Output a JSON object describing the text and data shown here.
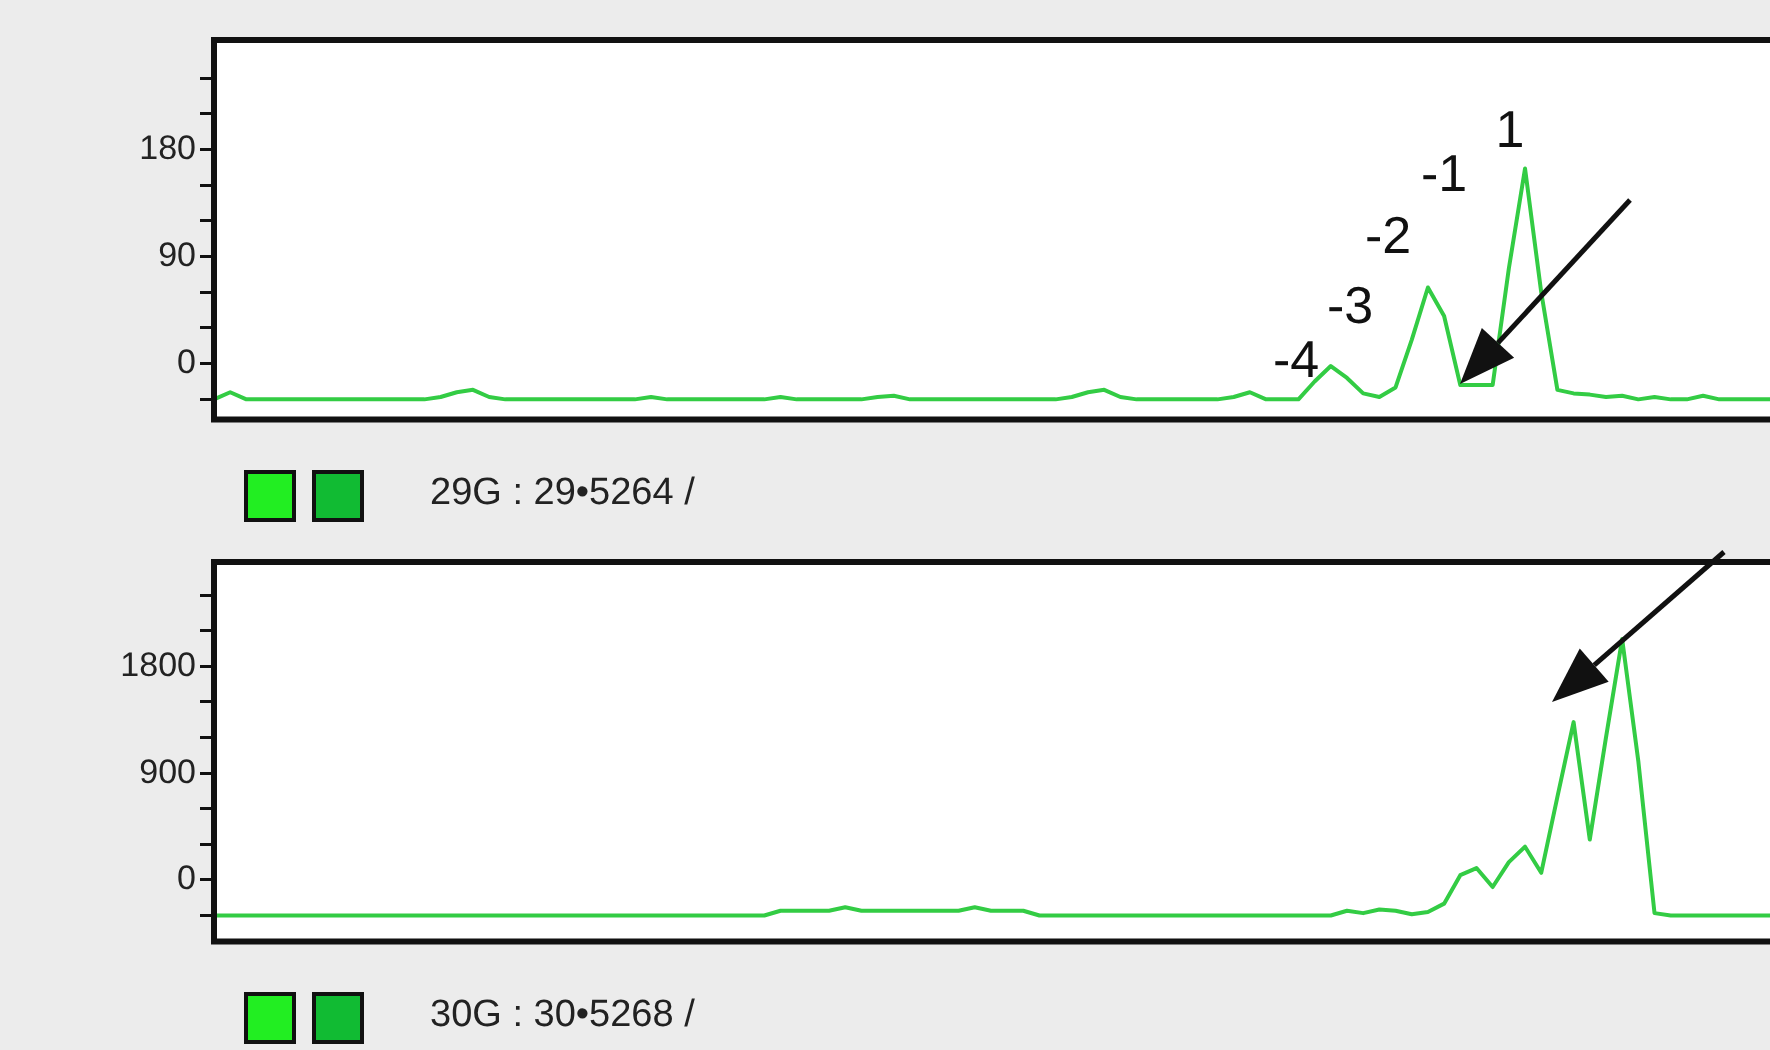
{
  "chart_data": [
    {
      "type": "line",
      "categories": [
        null,
        null,
        null,
        null,
        null,
        null,
        null,
        null,
        null,
        null,
        null,
        null,
        null,
        null,
        null,
        null,
        null,
        null,
        null,
        null,
        null,
        null,
        null,
        null,
        null,
        null,
        null,
        null,
        null,
        null,
        null,
        null,
        null,
        null,
        null,
        null,
        null,
        null,
        null,
        null,
        null,
        null,
        null,
        null,
        null,
        null,
        null,
        null,
        null,
        null,
        null,
        null,
        null,
        null,
        null,
        null,
        null,
        null,
        null,
        null,
        null,
        null,
        null,
        null,
        null,
        null,
        null,
        null,
        null,
        null,
        null,
        null,
        null,
        null,
        null,
        null,
        null,
        null,
        null,
        null,
        null,
        null,
        null,
        null,
        null,
        null,
        null,
        null,
        null,
        null,
        null,
        null,
        null,
        null,
        null,
        null,
        null,
        null
      ],
      "series": [
        {
          "color": "#33cc44",
          "values": [
            -30,
            -24,
            -30,
            -30,
            -30,
            -30,
            -30,
            -30,
            -30,
            -30,
            -30,
            -30,
            -30,
            -30,
            -28,
            -24,
            -22,
            -28,
            -30,
            -30,
            -30,
            -30,
            -30,
            -30,
            -30,
            -30,
            -30,
            -28,
            -30,
            -30,
            -30,
            -30,
            -30,
            -30,
            -30,
            -28,
            -30,
            -30,
            -30,
            -30,
            -30,
            -28,
            -27,
            -30,
            -30,
            -30,
            -30,
            -30,
            -30,
            -30,
            -30,
            -30,
            -30,
            -28,
            -24,
            -22,
            -28,
            -30,
            -30,
            -30,
            -30,
            -30,
            -30,
            -28,
            -24,
            -30,
            -30,
            -30,
            -15,
            -2,
            -12,
            -25,
            -28,
            -20,
            20,
            64,
            40,
            -18,
            -18,
            -18,
            80,
            164,
            60,
            -22,
            -25,
            -26,
            -28,
            -27,
            -30,
            -28,
            -30,
            -30,
            -27,
            -30,
            -30,
            -30,
            -30,
            -30
          ]
        }
      ],
      "ylim": [
        -47,
        272
      ],
      "yticks": [
        {
          "value": -30,
          "label": null
        },
        {
          "value": 0,
          "label": "0"
        },
        {
          "value": 30,
          "label": null
        },
        {
          "value": 60,
          "label": null
        },
        {
          "value": 90,
          "label": "90"
        },
        {
          "value": 120,
          "label": null
        },
        {
          "value": 150,
          "label": null
        },
        {
          "value": 180,
          "label": "180"
        },
        {
          "value": 210,
          "label": null
        },
        {
          "value": 240,
          "label": null
        }
      ],
      "tick_labels": "y",
      "grid": false,
      "legend": false,
      "annotations": [
        "1",
        "-1",
        "-2",
        "-3",
        "-4",
        "29G : 29•5264 /"
      ]
    },
    {
      "type": "line",
      "categories": [
        null,
        null,
        null,
        null,
        null,
        null,
        null,
        null,
        null,
        null,
        null,
        null,
        null,
        null,
        null,
        null,
        null,
        null,
        null,
        null,
        null,
        null,
        null,
        null,
        null,
        null,
        null,
        null,
        null,
        null,
        null,
        null,
        null,
        null,
        null,
        null,
        null,
        null,
        null,
        null,
        null,
        null,
        null,
        null,
        null,
        null,
        null,
        null,
        null,
        null,
        null,
        null,
        null,
        null,
        null,
        null,
        null,
        null,
        null,
        null,
        null,
        null,
        null,
        null,
        null,
        null,
        null,
        null,
        null,
        null,
        null,
        null,
        null,
        null,
        null,
        null,
        null,
        null,
        null,
        null,
        null,
        null,
        null,
        null,
        null,
        null,
        null,
        null,
        null,
        null,
        null,
        null,
        null,
        null,
        null,
        null,
        null,
        null
      ],
      "series": [
        {
          "color": "#33cc44",
          "values": [
            -300,
            -300,
            -300,
            -300,
            -300,
            -300,
            -300,
            -300,
            -300,
            -300,
            -300,
            -300,
            -300,
            -300,
            -300,
            -300,
            -300,
            -300,
            -300,
            -300,
            -300,
            -300,
            -300,
            -300,
            -300,
            -300,
            -300,
            -300,
            -300,
            -300,
            -300,
            -300,
            -300,
            -300,
            -300,
            -260,
            -260,
            -260,
            -260,
            -230,
            -260,
            -260,
            -260,
            -260,
            -260,
            -260,
            -260,
            -230,
            -260,
            -260,
            -260,
            -300,
            -300,
            -300,
            -300,
            -300,
            -300,
            -300,
            -300,
            -300,
            -300,
            -300,
            -300,
            -300,
            -300,
            -300,
            -300,
            -300,
            -300,
            -300,
            -260,
            -280,
            -250,
            -260,
            -290,
            -270,
            -200,
            40,
            100,
            -60,
            150,
            280,
            60,
            700,
            1330,
            340,
            1200,
            2030,
            1000,
            -280,
            -300,
            -300,
            -300,
            -300,
            -300,
            -300,
            -300,
            -300
          ]
        }
      ],
      "ylim": [
        -520,
        2680
      ],
      "yticks": [
        {
          "value": -300,
          "label": null
        },
        {
          "value": 0,
          "label": "0"
        },
        {
          "value": 300,
          "label": null
        },
        {
          "value": 600,
          "label": null
        },
        {
          "value": 900,
          "label": "900"
        },
        {
          "value": 1200,
          "label": null
        },
        {
          "value": 1500,
          "label": null
        },
        {
          "value": 1800,
          "label": "1800"
        },
        {
          "value": 2100,
          "label": null
        },
        {
          "value": 2400,
          "label": null
        }
      ],
      "tick_labels": "y",
      "grid": false,
      "legend": false,
      "annotations": [
        "30G : 30•5268 /"
      ]
    }
  ]
}
